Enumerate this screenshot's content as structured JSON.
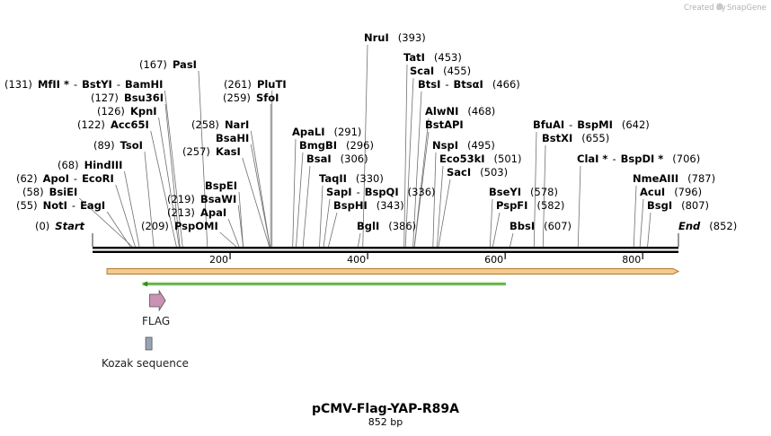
{
  "branding": {
    "created_by": "Created by",
    "brand_name": "SnapGene",
    "brand_icon": "snapgene-logo-icon"
  },
  "title": "pCMV-Flag-YAP-R89A",
  "length_label": "852 bp",
  "sequence": {
    "start": 0,
    "end": 852
  },
  "ticks": [
    {
      "pos": 200,
      "label": "200"
    },
    {
      "pos": 400,
      "label": "400"
    },
    {
      "pos": 600,
      "label": "600"
    },
    {
      "pos": 800,
      "label": "800"
    }
  ],
  "sites": [
    {
      "pos": 0,
      "parts": [
        {
          "t": "(0)",
          "s": "n"
        },
        {
          "t": "Start",
          "s": "i"
        }
      ]
    },
    {
      "pos": 55,
      "parts": [
        {
          "t": "(55)",
          "s": "n"
        },
        {
          "t": "NotI",
          "s": "b"
        },
        {
          "t": "-",
          "s": "n"
        },
        {
          "t": "EagI",
          "s": "b"
        }
      ]
    },
    {
      "pos": 58,
      "parts": [
        {
          "t": "(58)",
          "s": "n"
        },
        {
          "t": "BsiEI",
          "s": "b"
        }
      ]
    },
    {
      "pos": 62,
      "parts": [
        {
          "t": "(62)",
          "s": "n"
        },
        {
          "t": "ApoI",
          "s": "b"
        },
        {
          "t": "-",
          "s": "n"
        },
        {
          "t": "EcoRI",
          "s": "b"
        }
      ]
    },
    {
      "pos": 68,
      "parts": [
        {
          "t": "(68)",
          "s": "n"
        },
        {
          "t": "HindIII",
          "s": "b"
        }
      ]
    },
    {
      "pos": 89,
      "parts": [
        {
          "t": "(89)",
          "s": "n"
        },
        {
          "t": "TsoI",
          "s": "b"
        }
      ]
    },
    {
      "pos": 122,
      "parts": [
        {
          "t": "(122)",
          "s": "n"
        },
        {
          "t": "Acc65I",
          "s": "b"
        }
      ]
    },
    {
      "pos": 126,
      "parts": [
        {
          "t": "(126)",
          "s": "n"
        },
        {
          "t": "KpnI",
          "s": "b"
        }
      ]
    },
    {
      "pos": 127,
      "parts": [
        {
          "t": "(127)",
          "s": "n"
        },
        {
          "t": "Bsu36I",
          "s": "b"
        }
      ]
    },
    {
      "pos": 131,
      "parts": [
        {
          "t": "(131)",
          "s": "n"
        },
        {
          "t": "MfII *",
          "s": "b"
        },
        {
          "t": "-",
          "s": "n"
        },
        {
          "t": "BstYI",
          "s": "b"
        },
        {
          "t": "-",
          "s": "n"
        },
        {
          "t": "BamHI",
          "s": "b"
        }
      ]
    },
    {
      "pos": 167,
      "parts": [
        {
          "t": "(167)",
          "s": "n"
        },
        {
          "t": "PasI",
          "s": "b"
        }
      ]
    },
    {
      "pos": 209,
      "parts": [
        {
          "t": "(209)",
          "s": "n"
        },
        {
          "t": "PspOMI",
          "s": "b"
        }
      ]
    },
    {
      "pos": 213,
      "parts": [
        {
          "t": "(213)",
          "s": "n"
        },
        {
          "t": "ApaI",
          "s": "b"
        }
      ]
    },
    {
      "pos": 219,
      "parts": [
        {
          "t": "(219)",
          "s": "n"
        },
        {
          "t": "BsaWI",
          "s": "b"
        }
      ]
    },
    {
      "pos": 219,
      "parts": [
        {
          "t": "BspEI",
          "s": "b"
        }
      ]
    },
    {
      "pos": 257,
      "parts": [
        {
          "t": "(257)",
          "s": "n"
        },
        {
          "t": "KasI",
          "s": "b"
        }
      ]
    },
    {
      "pos": 258,
      "parts": [
        {
          "t": "BsaHI",
          "s": "b"
        }
      ]
    },
    {
      "pos": 258,
      "parts": [
        {
          "t": "(258)",
          "s": "n"
        },
        {
          "t": "NarI",
          "s": "b"
        }
      ]
    },
    {
      "pos": 259,
      "parts": [
        {
          "t": "(259)",
          "s": "n"
        },
        {
          "t": "SfoI",
          "s": "b"
        }
      ]
    },
    {
      "pos": 261,
      "parts": [
        {
          "t": "(261)",
          "s": "n"
        },
        {
          "t": "PluTI",
          "s": "b"
        }
      ]
    },
    {
      "pos": 291,
      "parts": [
        {
          "t": "ApaLI",
          "s": "b"
        },
        {
          "t": "(291)",
          "s": "n"
        }
      ]
    },
    {
      "pos": 296,
      "parts": [
        {
          "t": "BmgBI",
          "s": "b"
        },
        {
          "t": "(296)",
          "s": "n"
        }
      ]
    },
    {
      "pos": 306,
      "parts": [
        {
          "t": "BsaI",
          "s": "b"
        },
        {
          "t": "(306)",
          "s": "n"
        }
      ]
    },
    {
      "pos": 330,
      "parts": [
        {
          "t": "TaqII",
          "s": "b"
        },
        {
          "t": "(330)",
          "s": "n"
        }
      ]
    },
    {
      "pos": 336,
      "parts": [
        {
          "t": "SapI",
          "s": "b"
        },
        {
          "t": "-",
          "s": "n"
        },
        {
          "t": "BspQI",
          "s": "b"
        },
        {
          "t": "(336)",
          "s": "n"
        }
      ]
    },
    {
      "pos": 343,
      "parts": [
        {
          "t": "BspHI",
          "s": "b"
        },
        {
          "t": "(343)",
          "s": "n"
        }
      ]
    },
    {
      "pos": 386,
      "parts": [
        {
          "t": "BglI",
          "s": "b"
        },
        {
          "t": "(386)",
          "s": "n"
        }
      ]
    },
    {
      "pos": 393,
      "parts": [
        {
          "t": "NruI",
          "s": "b"
        },
        {
          "t": "(393)",
          "s": "n"
        }
      ]
    },
    {
      "pos": 453,
      "parts": [
        {
          "t": "TatI",
          "s": "b"
        },
        {
          "t": "(453)",
          "s": "n"
        }
      ]
    },
    {
      "pos": 455,
      "parts": [
        {
          "t": "ScaI",
          "s": "b"
        },
        {
          "t": "(455)",
          "s": "n"
        }
      ]
    },
    {
      "pos": 466,
      "parts": [
        {
          "t": "BtsI",
          "s": "b"
        },
        {
          "t": "-",
          "s": "n"
        },
        {
          "t": "BtsαI",
          "s": "b"
        },
        {
          "t": "(466)",
          "s": "n"
        }
      ]
    },
    {
      "pos": 468,
      "parts": [
        {
          "t": "AlwNI",
          "s": "b"
        },
        {
          "t": "(468)",
          "s": "n"
        }
      ]
    },
    {
      "pos": 468,
      "parts": [
        {
          "t": "BstAPI",
          "s": "b"
        }
      ]
    },
    {
      "pos": 495,
      "parts": [
        {
          "t": "NspI",
          "s": "b"
        },
        {
          "t": "(495)",
          "s": "n"
        }
      ]
    },
    {
      "pos": 501,
      "parts": [
        {
          "t": "Eco53kI",
          "s": "b"
        },
        {
          "t": "(501)",
          "s": "n"
        }
      ]
    },
    {
      "pos": 503,
      "parts": [
        {
          "t": "SacI",
          "s": "b"
        },
        {
          "t": "(503)",
          "s": "n"
        }
      ]
    },
    {
      "pos": 578,
      "parts": [
        {
          "t": "BseYI",
          "s": "b"
        },
        {
          "t": "(578)",
          "s": "n"
        }
      ]
    },
    {
      "pos": 582,
      "parts": [
        {
          "t": "PspFI",
          "s": "b"
        },
        {
          "t": "(582)",
          "s": "n"
        }
      ]
    },
    {
      "pos": 607,
      "parts": [
        {
          "t": "BbsI",
          "s": "b"
        },
        {
          "t": "(607)",
          "s": "n"
        }
      ]
    },
    {
      "pos": 642,
      "parts": [
        {
          "t": "BfuAI",
          "s": "b"
        },
        {
          "t": "-",
          "s": "n"
        },
        {
          "t": "BspMI",
          "s": "b"
        },
        {
          "t": "(642)",
          "s": "n"
        }
      ]
    },
    {
      "pos": 655,
      "parts": [
        {
          "t": "BstXI",
          "s": "b"
        },
        {
          "t": "(655)",
          "s": "n"
        }
      ]
    },
    {
      "pos": 706,
      "parts": [
        {
          "t": "ClaI *",
          "s": "b"
        },
        {
          "t": "-",
          "s": "n"
        },
        {
          "t": "BspDI *",
          "s": "b"
        },
        {
          "t": "(706)",
          "s": "n"
        }
      ]
    },
    {
      "pos": 787,
      "parts": [
        {
          "t": "NmeAIII",
          "s": "b"
        },
        {
          "t": "(787)",
          "s": "n"
        }
      ]
    },
    {
      "pos": 796,
      "parts": [
        {
          "t": "AcuI",
          "s": "b"
        },
        {
          "t": "(796)",
          "s": "n"
        }
      ]
    },
    {
      "pos": 807,
      "parts": [
        {
          "t": "BsgI",
          "s": "b"
        },
        {
          "t": "(807)",
          "s": "n"
        }
      ]
    },
    {
      "pos": 852,
      "parts": [
        {
          "t": "End",
          "s": "i"
        },
        {
          "t": "(852)",
          "s": "n"
        }
      ]
    }
  ],
  "features": [
    {
      "name": "",
      "type": "orf",
      "start": 21,
      "end": 852,
      "direction": "forward",
      "color": "#f5c98f",
      "edge": "#b07a2a"
    },
    {
      "name": "",
      "type": "primer",
      "start": 72,
      "end": 601,
      "direction": "reverse",
      "color": "#8fd37a",
      "edge": "#2e8a1c"
    },
    {
      "name": "FLAG",
      "type": "tag",
      "start": 83,
      "end": 106,
      "direction": "forward",
      "color": "#c992b4"
    },
    {
      "name": "Kozak sequence",
      "type": "misc",
      "start": 72,
      "end": 81,
      "direction": "none",
      "color": "#98a4b2"
    }
  ]
}
